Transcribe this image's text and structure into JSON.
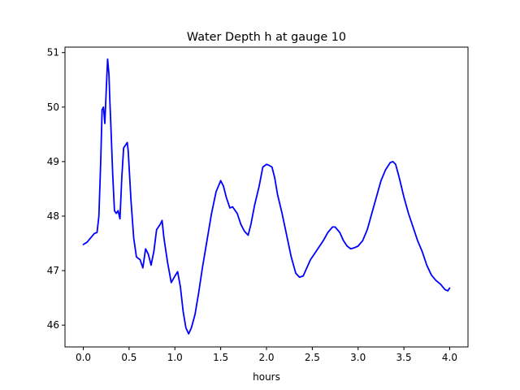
{
  "chart_data": {
    "type": "line",
    "title": "Water Depth h at gauge 10",
    "xlabel": "hours",
    "ylabel": "",
    "xlim": [
      -0.2,
      4.2
    ],
    "ylim": [
      45.6,
      51.1
    ],
    "xticks": [
      0.0,
      0.5,
      1.0,
      1.5,
      2.0,
      2.5,
      3.0,
      3.5,
      4.0
    ],
    "xtick_labels": [
      "0.0",
      "0.5",
      "1.0",
      "1.5",
      "2.0",
      "2.5",
      "3.0",
      "3.5",
      "4.0"
    ],
    "yticks": [
      46,
      47,
      48,
      49,
      50,
      51
    ],
    "ytick_labels": [
      "46",
      "47",
      "48",
      "49",
      "50",
      "51"
    ],
    "grid": false,
    "series": [
      {
        "color": "#0000ff",
        "x": [
          0.0,
          0.04,
          0.08,
          0.12,
          0.15,
          0.17,
          0.19,
          0.205,
          0.22,
          0.235,
          0.25,
          0.265,
          0.28,
          0.29,
          0.3,
          0.32,
          0.34,
          0.36,
          0.38,
          0.4,
          0.42,
          0.44,
          0.46,
          0.48,
          0.49,
          0.5,
          0.52,
          0.55,
          0.58,
          0.62,
          0.65,
          0.68,
          0.71,
          0.74,
          0.77,
          0.8,
          0.84,
          0.86,
          0.88,
          0.92,
          0.96,
          1.0,
          1.03,
          1.06,
          1.09,
          1.12,
          1.15,
          1.18,
          1.22,
          1.26,
          1.3,
          1.35,
          1.4,
          1.45,
          1.5,
          1.53,
          1.56,
          1.6,
          1.63,
          1.68,
          1.72,
          1.76,
          1.8,
          1.83,
          1.87,
          1.92,
          1.96,
          2.0,
          2.03,
          2.06,
          2.09,
          2.12,
          2.17,
          2.22,
          2.27,
          2.32,
          2.36,
          2.4,
          2.44,
          2.48,
          2.52,
          2.56,
          2.62,
          2.67,
          2.72,
          2.75,
          2.8,
          2.84,
          2.88,
          2.92,
          2.96,
          3.0,
          3.05,
          3.1,
          3.15,
          3.2,
          3.25,
          3.3,
          3.35,
          3.38,
          3.41,
          3.45,
          3.5,
          3.55,
          3.6,
          3.65,
          3.7,
          3.75,
          3.8,
          3.85,
          3.9,
          3.95,
          3.98,
          4.0
        ],
        "y": [
          47.48,
          47.52,
          47.6,
          47.68,
          47.7,
          48.0,
          49.0,
          49.95,
          50.0,
          49.7,
          50.3,
          50.88,
          50.6,
          50.1,
          49.7,
          48.8,
          48.1,
          48.05,
          48.1,
          47.95,
          48.7,
          49.25,
          49.3,
          49.35,
          49.2,
          48.9,
          48.3,
          47.6,
          47.25,
          47.2,
          47.05,
          47.4,
          47.3,
          47.1,
          47.35,
          47.75,
          47.85,
          47.92,
          47.6,
          47.15,
          46.78,
          46.9,
          46.98,
          46.7,
          46.25,
          45.95,
          45.84,
          45.95,
          46.2,
          46.6,
          47.05,
          47.55,
          48.05,
          48.45,
          48.65,
          48.55,
          48.35,
          48.15,
          48.17,
          48.05,
          47.85,
          47.72,
          47.65,
          47.85,
          48.2,
          48.55,
          48.9,
          48.95,
          48.93,
          48.9,
          48.7,
          48.4,
          48.05,
          47.65,
          47.25,
          46.95,
          46.88,
          46.9,
          47.05,
          47.2,
          47.3,
          47.4,
          47.55,
          47.7,
          47.8,
          47.8,
          47.7,
          47.55,
          47.45,
          47.4,
          47.42,
          47.45,
          47.55,
          47.75,
          48.05,
          48.35,
          48.65,
          48.85,
          48.98,
          49.0,
          48.95,
          48.7,
          48.35,
          48.05,
          47.8,
          47.55,
          47.35,
          47.1,
          46.92,
          46.82,
          46.75,
          46.65,
          46.63,
          46.68
        ]
      }
    ]
  }
}
